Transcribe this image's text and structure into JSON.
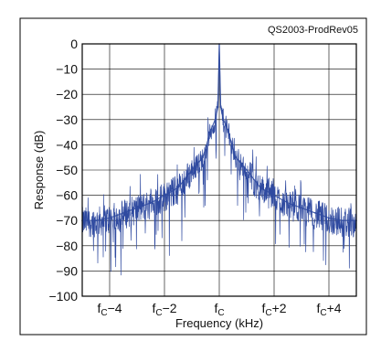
{
  "chart_data": {
    "type": "line",
    "title": "",
    "source_label": "QS2003-ProdRev05",
    "xlabel": "Frequency (kHz)",
    "ylabel": "Response (dB)",
    "xlim": [
      -5,
      5
    ],
    "ylim": [
      -100,
      0
    ],
    "grid": true,
    "yticks": [
      0,
      -10,
      -20,
      -30,
      -40,
      -50,
      -60,
      -70,
      -80,
      -90,
      -100
    ],
    "ytick_labels": [
      "0",
      "−10",
      "−20",
      "−30",
      "−40",
      "−50",
      "−60",
      "−70",
      "−80",
      "−90",
      "−100"
    ],
    "xticks": [
      {
        "x": -4,
        "base": "f",
        "sub": "C",
        "suffix": "−4"
      },
      {
        "x": -2,
        "base": "f",
        "sub": "C",
        "suffix": "−2"
      },
      {
        "x": 0,
        "base": "f",
        "sub": "C",
        "suffix": ""
      },
      {
        "x": 2,
        "base": "f",
        "sub": "C",
        "suffix": "+2"
      },
      {
        "x": 4,
        "base": "f",
        "sub": "C",
        "suffix": "+4"
      }
    ],
    "series": [
      {
        "color": "#2f4aa0",
        "x": [
          -5,
          -4.5,
          -4,
          -3.5,
          -3,
          -2.5,
          -2,
          -1.5,
          -1,
          -0.6,
          -0.3,
          -0.15,
          -0.05,
          0,
          0.05,
          0.15,
          0.3,
          0.6,
          1,
          1.5,
          2,
          2.5,
          3,
          3.5,
          4,
          4.5,
          5
        ],
        "y": [
          -70,
          -70,
          -69,
          -67,
          -65,
          -63,
          -60,
          -57,
          -50,
          -45,
          -34,
          -30,
          -25,
          0,
          -25,
          -30,
          -34,
          -45,
          -50,
          -57,
          -60,
          -63,
          -65,
          -67,
          -69,
          -70,
          -70
        ]
      }
    ]
  }
}
